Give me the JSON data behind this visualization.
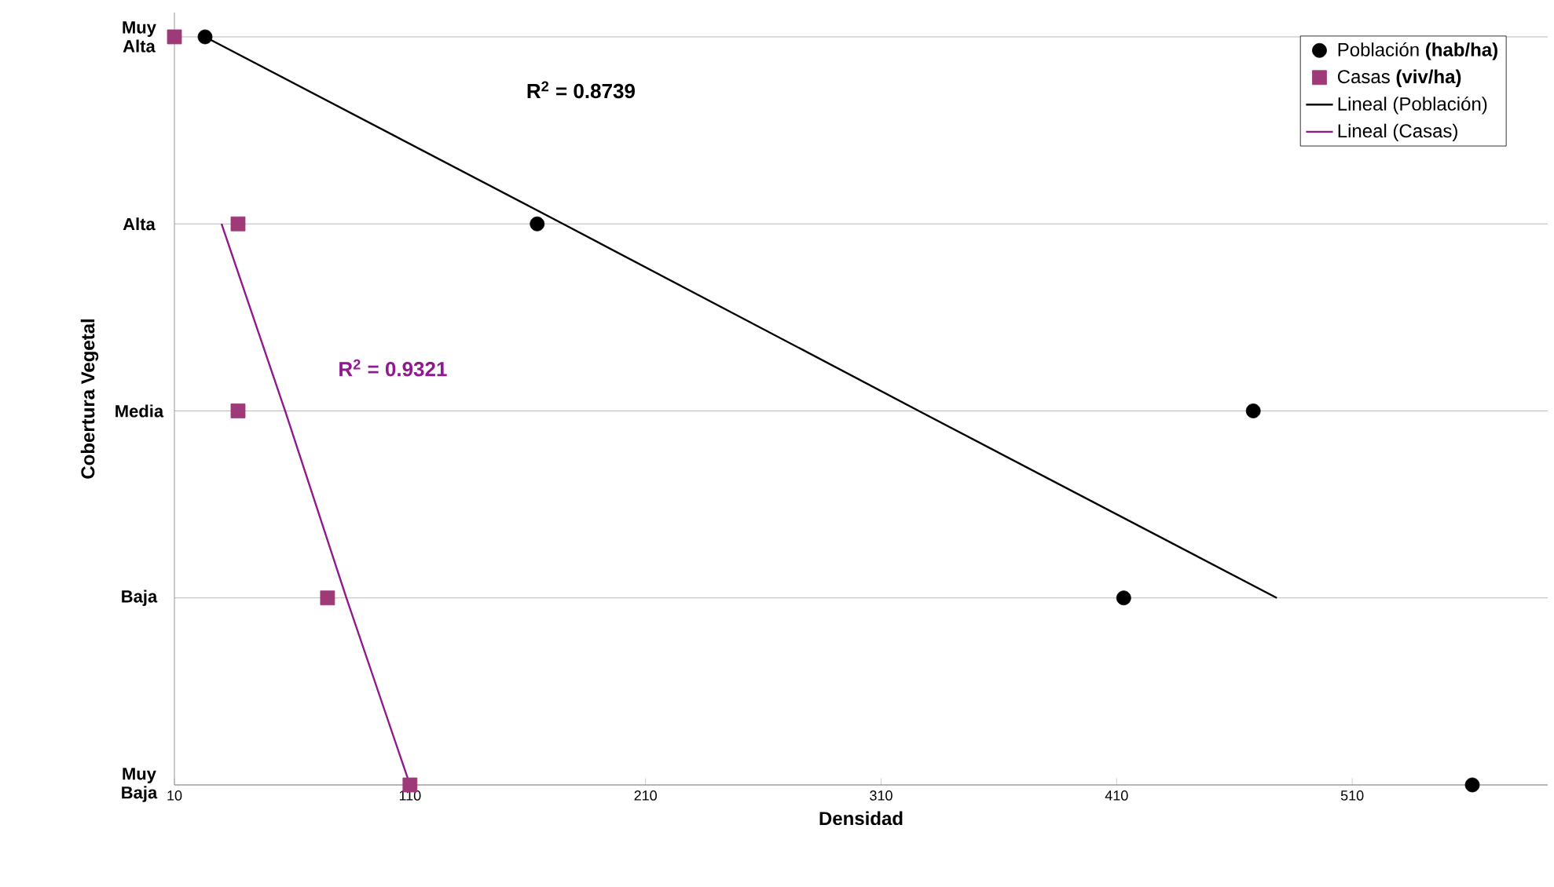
{
  "chart_data": {
    "type": "scatter",
    "orientation": "horizontal",
    "xlabel": "Densidad",
    "ylabel": "Cobertura Vegetal",
    "categories": [
      "Muy Alta",
      "Alta",
      "Media",
      "Baja",
      "Muy Baja"
    ],
    "xlim": [
      10,
      593
    ],
    "xticks": [
      10,
      110,
      210,
      310,
      410,
      510
    ],
    "grid": "y",
    "legend": "top right",
    "series": [
      {
        "name": "Población **(hab/ha)**",
        "marker": "circle",
        "color": "#000000",
        "values": [
          23,
          164,
          468,
          413,
          561
        ]
      },
      {
        "name": "Casas **(viv/ha)**",
        "marker": "square",
        "color": "#9e3a78",
        "values": [
          10,
          37,
          37,
          75,
          110
        ]
      },
      {
        "name": "Lineal (Población)",
        "type": "line",
        "marker": "none",
        "color": "#000000",
        "values": [
          23,
          175,
          326,
          478,
          null
        ]
      },
      {
        "name": "Lineal (Casas)",
        "type": "line",
        "marker": "none",
        "color": "#8e1a8e",
        "values": [
          null,
          30,
          57,
          83,
          110
        ]
      }
    ],
    "annotations": [
      "R$^{2}$ = 0.8739",
      "R$^{2}$ = 0.9321"
    ]
  }
}
